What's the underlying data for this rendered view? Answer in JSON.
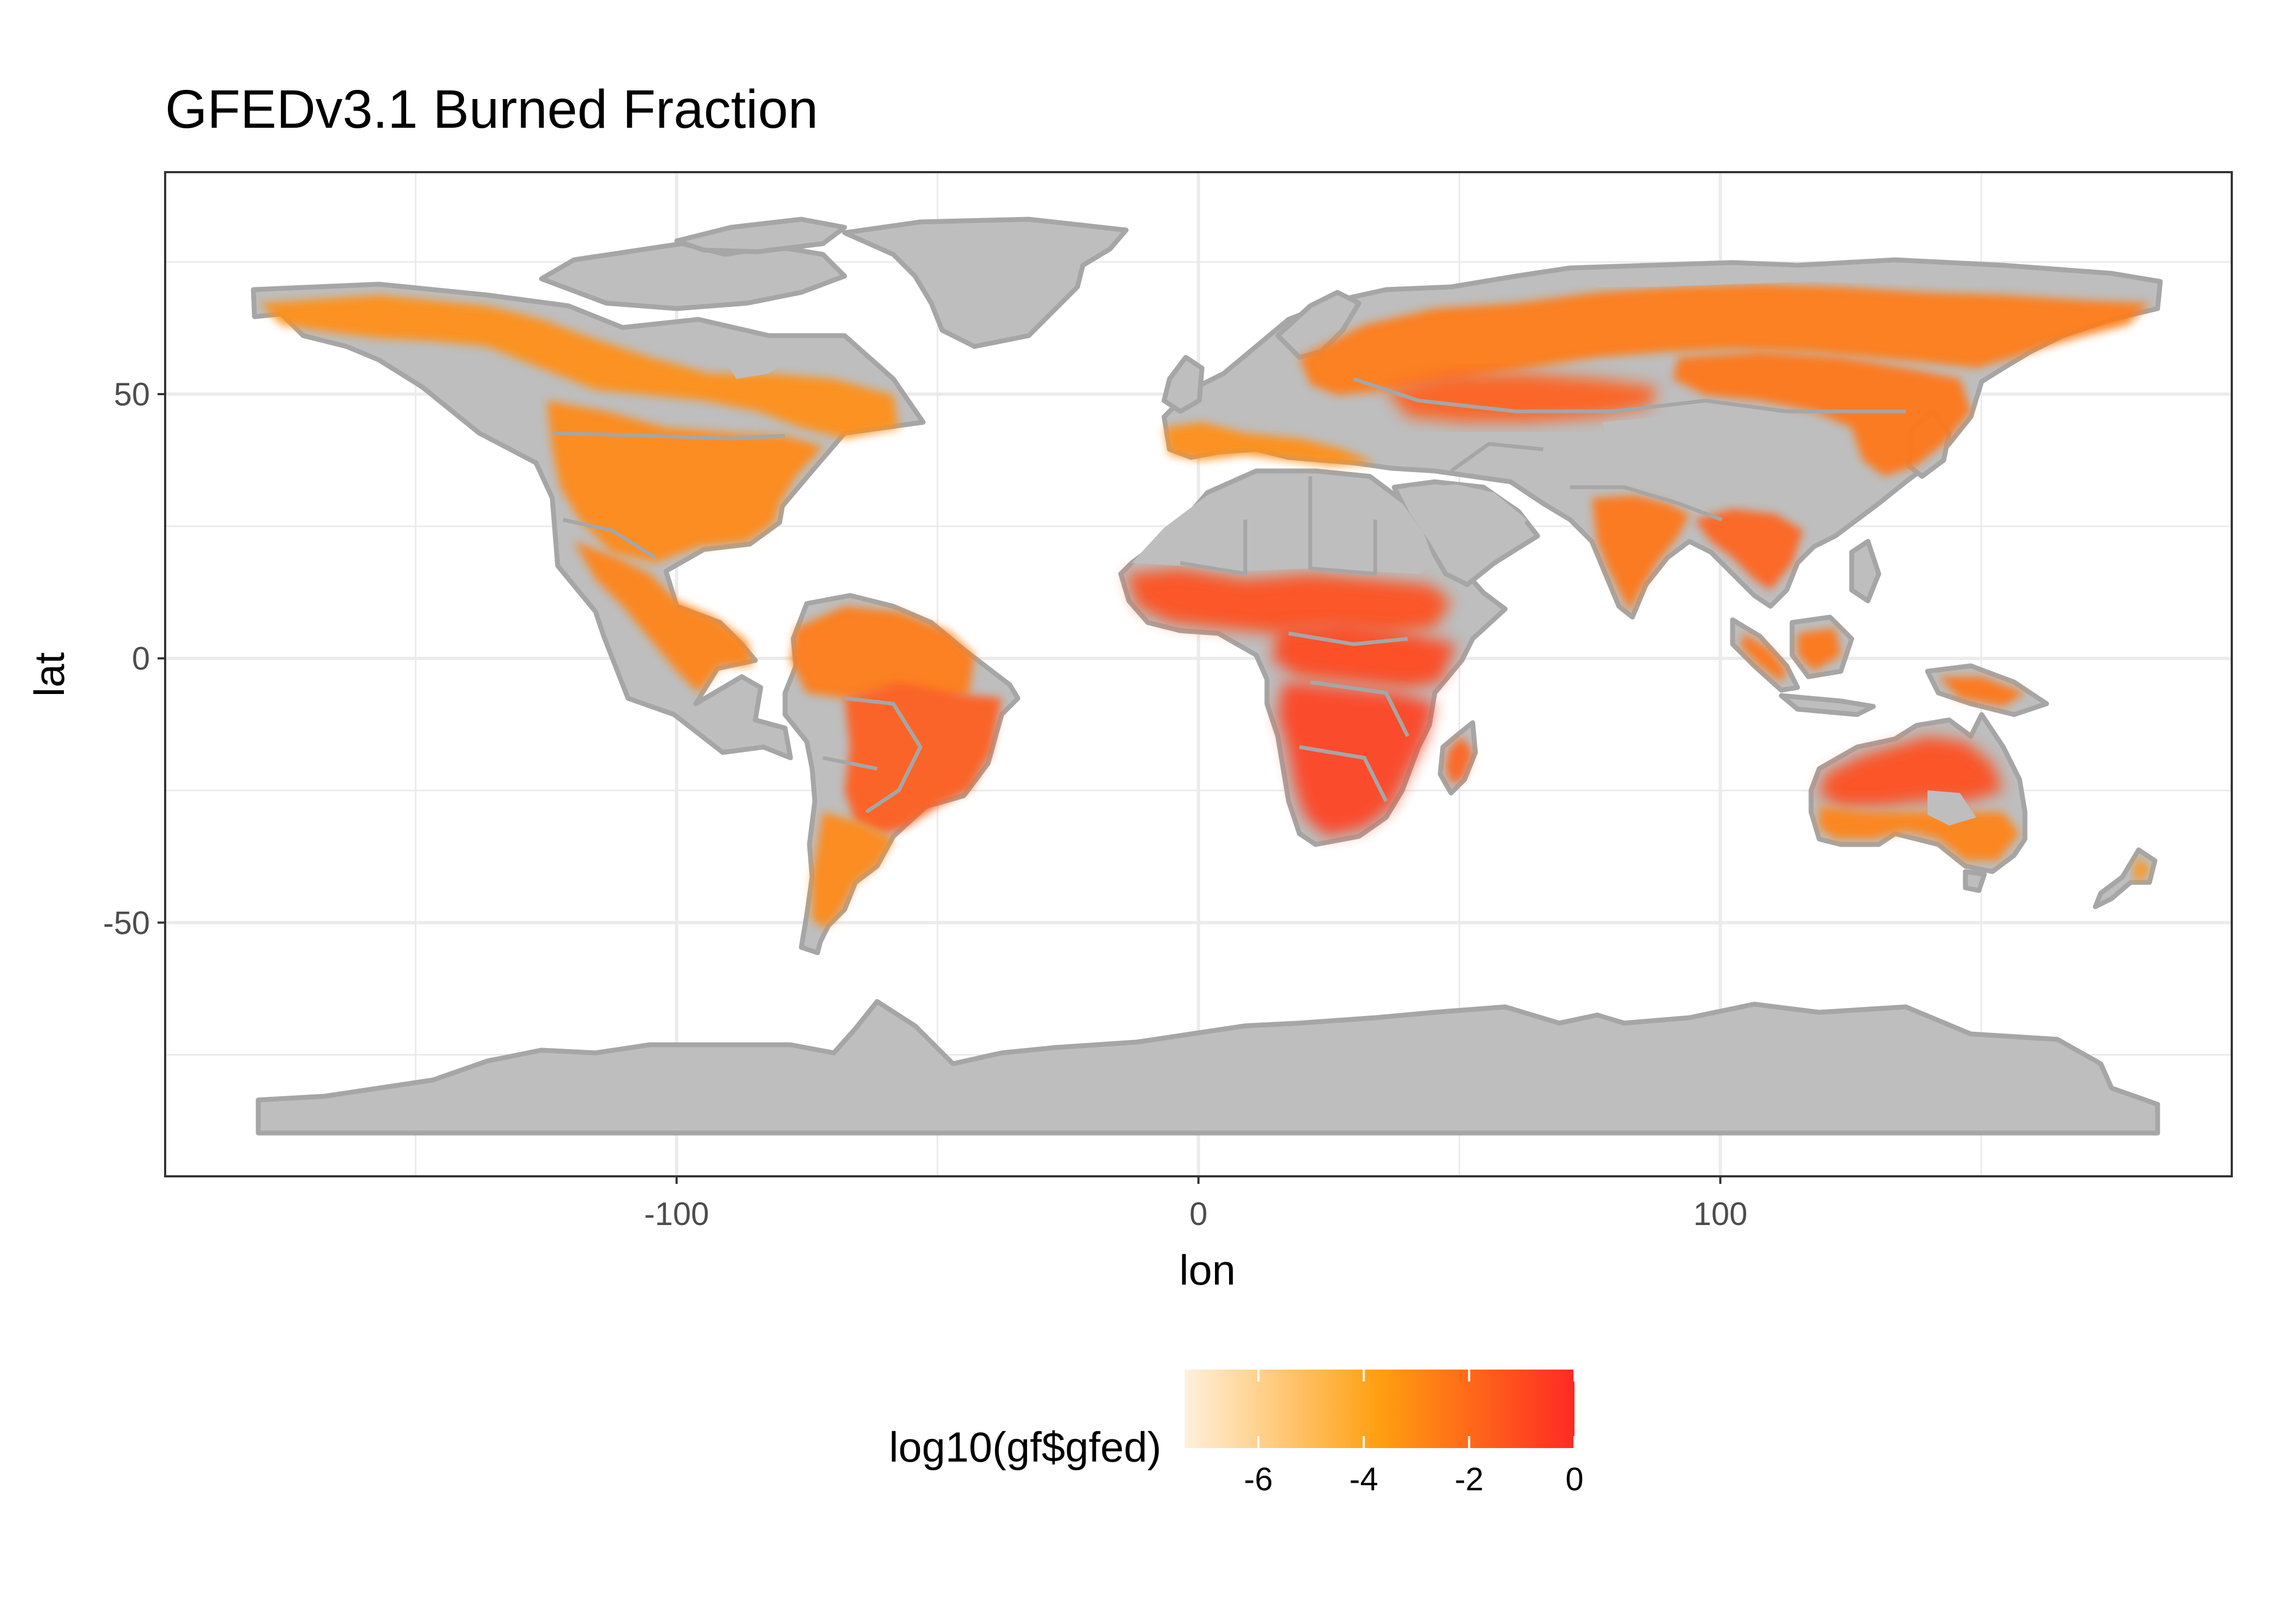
{
  "title": "GFEDv3.1 Burned Fraction",
  "x_axis": {
    "label": "lon",
    "range": [
      -198,
      198
    ],
    "major_breaks": [
      -100,
      0,
      100
    ],
    "minor_breaks": [
      -150,
      -50,
      50,
      150
    ],
    "tick_labels": [
      "-100",
      "0",
      "100"
    ]
  },
  "y_axis": {
    "label": "lat",
    "range": [
      -98,
      92
    ],
    "major_breaks": [
      -50,
      0,
      50
    ],
    "minor_breaks": [
      -75,
      -25,
      25,
      75
    ],
    "tick_labels": [
      "-50",
      "0",
      "50"
    ]
  },
  "legend": {
    "title": "log10(gf$gfed)",
    "position": "bottom",
    "range": [
      -7.4,
      0
    ],
    "breaks": [
      -6,
      -4,
      -2,
      0
    ],
    "tick_labels": [
      "-6",
      "-4",
      "-2",
      "0"
    ],
    "gradient": [
      "#fff0dc",
      "#ff9f10",
      "#ff2a24"
    ]
  },
  "colors": {
    "land_no_fire": "#bebebe",
    "coastline": "#a6a6a6",
    "grid_major": "#ebebeb",
    "panel_border": "#333333",
    "fire_low": "#ff9f10",
    "fire_mid": "#ff6a1c",
    "fire_high": "#ff2a24"
  },
  "chart_data": {
    "type": "heatmap",
    "variable": "log10(gf$gfed)",
    "regions": [
      {
        "name": "Antarctica",
        "category": "land"
      },
      {
        "name": "Greenland",
        "category": "land"
      },
      {
        "name": "Canadian Arctic islands",
        "category": "land"
      },
      {
        "name": "Boreal North America",
        "category": "fire",
        "value": -3.2
      },
      {
        "name": "Contiguous United States",
        "category": "fire",
        "value": -3.0
      },
      {
        "name": "Mexico and Central America",
        "category": "fire",
        "value": -2.8
      },
      {
        "name": "Amazon basin",
        "category": "fire",
        "value": -2.6
      },
      {
        "name": "Cerrado and Chaco",
        "category": "fire",
        "value": -1.6
      },
      {
        "name": "Southern South America",
        "category": "fire",
        "value": -3.0
      },
      {
        "name": "Sahara and Arabia",
        "category": "land"
      },
      {
        "name": "Mediterranean Europe",
        "category": "fire",
        "value": -3.2
      },
      {
        "name": "Sahel",
        "category": "fire",
        "value": -1.2
      },
      {
        "name": "Central African savanna",
        "category": "fire",
        "value": -0.9
      },
      {
        "name": "Southern African savanna",
        "category": "fire",
        "value": -0.8
      },
      {
        "name": "Madagascar",
        "category": "fire",
        "value": -1.8
      },
      {
        "name": "Eastern Europe and Russia",
        "category": "fire",
        "value": -2.6
      },
      {
        "name": "Kazakh steppe",
        "category": "fire",
        "value": -1.7
      },
      {
        "name": "Central Siberia",
        "category": "fire",
        "value": -2.4
      },
      {
        "name": "Tibetan Plateau",
        "category": "land"
      },
      {
        "name": "India",
        "category": "fire",
        "value": -2.4
      },
      {
        "name": "Southeast Asia",
        "category": "fire",
        "value": -1.8
      },
      {
        "name": "Indonesia",
        "category": "fire",
        "value": -2.4
      },
      {
        "name": "Northern Australia",
        "category": "fire",
        "value": -1.1
      },
      {
        "name": "Southern Australia",
        "category": "fire",
        "value": -2.8
      },
      {
        "name": "New Zealand",
        "category": "fire",
        "value": -3.4
      }
    ]
  }
}
